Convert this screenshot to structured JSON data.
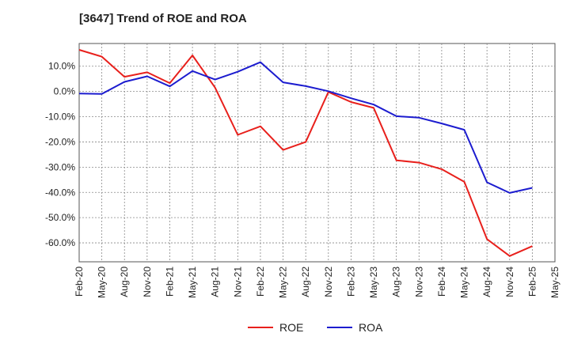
{
  "chart_data": {
    "type": "line",
    "title": "[3647]  Trend of ROE and ROA",
    "xlabel": "",
    "ylabel": "",
    "x_ticks": [
      "Feb-20",
      "May-20",
      "Aug-20",
      "Nov-20",
      "Feb-21",
      "May-21",
      "Aug-21",
      "Nov-21",
      "Feb-22",
      "May-22",
      "Aug-22",
      "Nov-22",
      "Feb-23",
      "May-23",
      "Aug-23",
      "Nov-23",
      "Feb-24",
      "May-24",
      "Aug-24",
      "Nov-24",
      "Feb-25",
      "May-25"
    ],
    "y_ticks": [
      "10.0%",
      "0.0%",
      "-10.0%",
      "-20.0%",
      "-30.0%",
      "-40.0%",
      "-50.0%",
      "-60.0%"
    ],
    "ylim": [
      -67.5,
      19
    ],
    "grid": true,
    "legend_position": "bottom-center",
    "x": [
      "Feb-20",
      "May-20",
      "Aug-20",
      "Nov-20",
      "Feb-21",
      "May-21",
      "Aug-21",
      "Nov-21",
      "Feb-22",
      "May-22",
      "Aug-22",
      "Nov-22",
      "Feb-23",
      "May-23",
      "Aug-23",
      "Nov-23",
      "Feb-24",
      "May-24",
      "Aug-24",
      "Nov-24",
      "Feb-25"
    ],
    "series": [
      {
        "name": "ROE",
        "color": "#e8201c",
        "values": [
          16.5,
          13.8,
          5.8,
          7.6,
          3.3,
          14.3,
          1.5,
          -17.2,
          -13.8,
          -23.2,
          -20.0,
          -0.2,
          -4.2,
          -6.5,
          -27.3,
          -28.2,
          -30.8,
          -35.8,
          -58.5,
          -65.2,
          -61.3
        ]
      },
      {
        "name": "ROA",
        "color": "#1c1ccf",
        "values": [
          -0.8,
          -1.0,
          3.8,
          6.0,
          2.0,
          8.1,
          4.7,
          7.8,
          11.6,
          3.6,
          2.1,
          0.1,
          -2.7,
          -5.2,
          -9.8,
          -10.4,
          -12.7,
          -15.2,
          -36.0,
          -40.2,
          -38.2
        ]
      }
    ]
  }
}
